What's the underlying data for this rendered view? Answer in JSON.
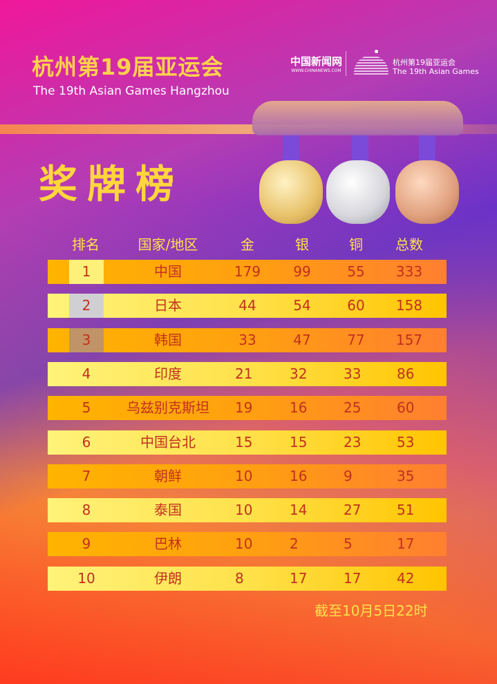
{
  "header": {
    "title_cn": "杭州第19届亚运会",
    "title_en": "The 19th Asian Games Hangzhou",
    "logo_chinanews": "中国新闻网",
    "logo_chinanews_url": "WWW.CHINANEWS.COM",
    "logo_games_cn": "杭州第19届亚运会",
    "logo_games_en": "The 19th Asian Games"
  },
  "medal_title": "奖牌榜",
  "colors": {
    "gold_rank": "#fff07a",
    "silver_rank": "#d0d0d4",
    "bronze_rank": "#c09468",
    "text": "#c2301e",
    "header_text": "#ffe24a"
  },
  "columns": [
    "排名",
    "国家/地区",
    "金",
    "银",
    "铜",
    "总数"
  ],
  "rows": [
    {
      "rank": "1",
      "country": "中国",
      "gold": "179",
      "silver": "99",
      "bronze": "55",
      "total": "333"
    },
    {
      "rank": "2",
      "country": "日本",
      "gold": "44",
      "silver": "54",
      "bronze": "60",
      "total": "158"
    },
    {
      "rank": "3",
      "country": "韩国",
      "gold": "33",
      "silver": "47",
      "bronze": "77",
      "total": "157"
    },
    {
      "rank": "4",
      "country": "印度",
      "gold": "21",
      "silver": "32",
      "bronze": "33",
      "total": "86"
    },
    {
      "rank": "5",
      "country": "乌兹别克斯坦",
      "gold": "19",
      "silver": "16",
      "bronze": "25",
      "total": "60"
    },
    {
      "rank": "6",
      "country": "中国台北",
      "gold": "15",
      "silver": "15",
      "bronze": "23",
      "total": "53"
    },
    {
      "rank": "7",
      "country": "朝鲜",
      "gold": "10",
      "silver": "16",
      "bronze": "9",
      "total": "35"
    },
    {
      "rank": "8",
      "country": "泰国",
      "gold": "10",
      "silver": "14",
      "bronze": "27",
      "total": "51"
    },
    {
      "rank": "9",
      "country": "巴林",
      "gold": "10",
      "silver": "2",
      "bronze": "5",
      "total": "17"
    },
    {
      "rank": "10",
      "country": "伊朗",
      "gold": "8",
      "silver": "17",
      "bronze": "17",
      "total": "42"
    }
  ],
  "footer": "截至10月5日22时"
}
